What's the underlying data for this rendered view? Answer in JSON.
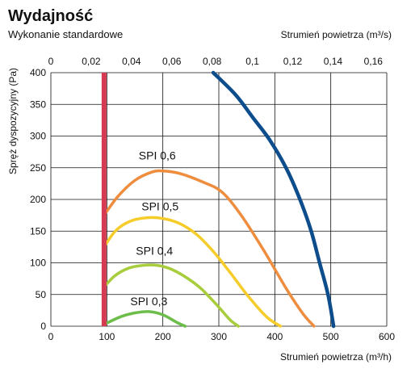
{
  "chart_data": {
    "type": "line",
    "title": "Wydajność",
    "subtitle": "Wykonanie standardowe",
    "xlabel": "Strumień powietrza (m³/h)",
    "x2label": "Strumień powietrza (m³/s)",
    "ylabel": "Spręż dyspozycyjny (Pa)",
    "xlim": [
      0,
      600
    ],
    "x2lim": [
      0,
      0.1667
    ],
    "ylim": [
      0,
      400
    ],
    "xticks": [
      "0",
      "100",
      "200",
      "300",
      "400",
      "500",
      "600"
    ],
    "x2ticks": [
      "0",
      "0,02",
      "0,04",
      "0,06",
      "0,08",
      "0,1",
      "0,12",
      "0,14",
      "0,16"
    ],
    "yticks": [
      "0",
      "50",
      "100",
      "150",
      "200",
      "250",
      "300",
      "350",
      "400"
    ],
    "grid": true,
    "colors": {
      "fan": "#0d4d8c",
      "limit": "#d63a52",
      "spi06": "#ee8d3e",
      "spi05": "#f6cc2a",
      "spi04": "#a7cc3c",
      "spi03": "#6cbd4a",
      "grid": "#111111"
    },
    "limit_line": {
      "x": 95
    },
    "fan_curve": {
      "x": [
        290,
        330,
        360,
        390,
        420,
        445,
        465,
        480,
        495,
        505
      ],
      "y": [
        400,
        365,
        330,
        295,
        250,
        200,
        150,
        100,
        50,
        0
      ]
    },
    "series": [
      {
        "name": "SPI 0,6",
        "label_pos": [
          190,
          263
        ],
        "x": [
          95,
          120,
          150,
          180,
          200,
          230,
          270,
          305,
          340,
          380,
          420,
          450,
          470
        ],
        "y": [
          175,
          205,
          230,
          243,
          245,
          241,
          228,
          212,
          175,
          120,
          60,
          20,
          0
        ]
      },
      {
        "name": "SPI 0,5",
        "label_pos": [
          195,
          183
        ],
        "x": [
          95,
          115,
          140,
          170,
          200,
          230,
          260,
          290,
          320,
          350,
          385,
          410
        ],
        "y": [
          125,
          150,
          165,
          171,
          170,
          162,
          145,
          118,
          85,
          50,
          15,
          0
        ]
      },
      {
        "name": "SPI 0,4",
        "label_pos": [
          185,
          113
        ],
        "x": [
          95,
          115,
          140,
          165,
          190,
          215,
          245,
          270,
          300,
          320,
          335
        ],
        "y": [
          62,
          80,
          92,
          96,
          96,
          90,
          75,
          58,
          30,
          10,
          0
        ]
      },
      {
        "name": "SPI 0,3",
        "label_pos": [
          175,
          33
        ],
        "x": [
          100,
          125,
          150,
          175,
          200,
          225,
          240
        ],
        "y": [
          5,
          15,
          21,
          23,
          18,
          6,
          0
        ]
      }
    ]
  }
}
